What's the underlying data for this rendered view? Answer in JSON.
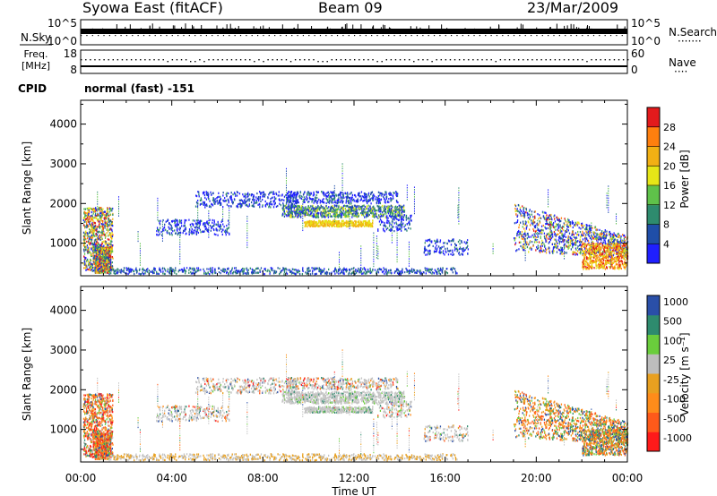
{
  "header": {
    "station": "Syowa East (fitACF)",
    "beam": "Beam 09",
    "date": "23/Mar/2009"
  },
  "status": {
    "nsky_label": "N.Sky",
    "nsky_ticks": [
      "10^5",
      "10^0"
    ],
    "nsearch_label": "N.Search",
    "freq_label": "Freq.",
    "freq_unit": "[MHz]",
    "freq_ticks": [
      "18",
      "8"
    ],
    "nave_label": "Nave",
    "nave_ticks": [
      "60",
      "0"
    ],
    "cpid_label": "CPID",
    "cpid_value": "normal (fast) -151"
  },
  "legend_symbols": {
    "nsearch": "·······",
    "nave": "····"
  },
  "colors": {
    "power": [
      "#1f1fff",
      "#1f4ea8",
      "#2e8b6e",
      "#5fc24a",
      "#e6e617",
      "#f2b014",
      "#ff7f0e",
      "#e31a1c"
    ],
    "velocity": [
      "#ff1a1a",
      "#ff5a1a",
      "#ff8c1a",
      "#e8a020",
      "#bdbdbd",
      "#6acd3c",
      "#2e8b6e",
      "#2a4fa8"
    ],
    "grey": "#c4c4c4"
  },
  "chart_data": [
    {
      "type": "heatmap",
      "name": "power-panel",
      "xlabel": "Time UT",
      "ylabel": "Slant Range [km]",
      "xticks": [
        "00:00",
        "04:00",
        "08:00",
        "12:00",
        "16:00",
        "20:00",
        "00:00"
      ],
      "xlim": [
        0,
        24
      ],
      "yticks": [
        "1000",
        "2000",
        "3000",
        "4000"
      ],
      "ylim": [
        180,
        4600
      ],
      "colorbar_label": "Power [dB]",
      "colorbar_ticks": [
        "4",
        "8",
        "12",
        "16",
        "20",
        "24",
        "28"
      ],
      "colorbar_range": [
        0,
        32
      ]
    },
    {
      "type": "heatmap",
      "name": "velocity-panel",
      "xlabel": "Time UT",
      "ylabel": "Slant Range [km]",
      "xticks": [
        "00:00",
        "04:00",
        "08:00",
        "12:00",
        "16:00",
        "20:00",
        "00:00"
      ],
      "xlim": [
        0,
        24
      ],
      "yticks": [
        "1000",
        "2000",
        "3000",
        "4000"
      ],
      "ylim": [
        180,
        4600
      ],
      "colorbar_label": "Velocity [m s⁻¹]",
      "colorbar_ticks": [
        "-1000",
        "-500",
        "-100",
        "-25",
        "25",
        "100",
        "500",
        "1000"
      ],
      "ground_scatter_color": "grey"
    }
  ]
}
